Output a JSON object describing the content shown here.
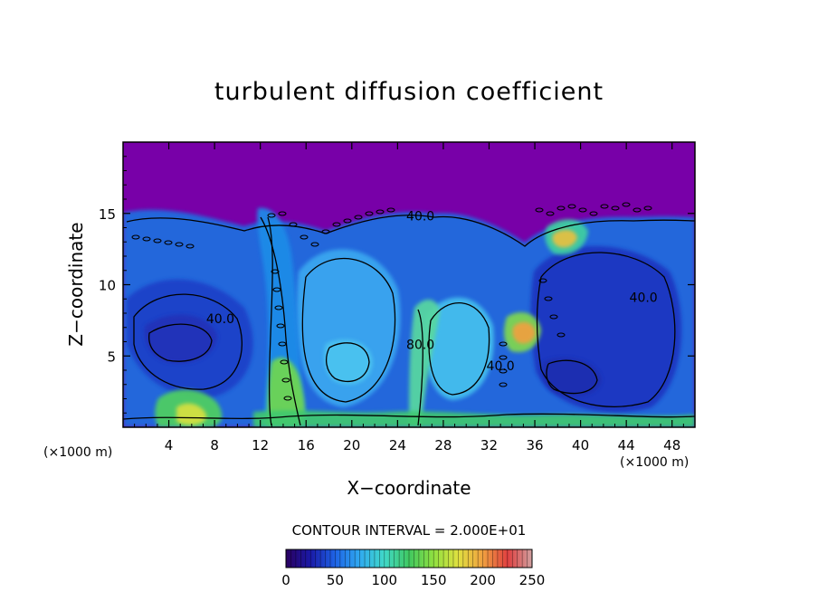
{
  "chart_data": {
    "type": "heatmap",
    "title": "turbulent diffusion coefficient",
    "xlabel": "X−coordinate",
    "ylabel": "Z−coordinate",
    "x_unit_left": "(×1000 m)",
    "x_unit_right": "(×1000 m)",
    "xlim": [
      0,
      50
    ],
    "ylim": [
      0,
      20
    ],
    "xticks": [
      4,
      8,
      12,
      16,
      20,
      24,
      28,
      32,
      36,
      40,
      44,
      48
    ],
    "yticks": [
      5,
      10,
      15
    ],
    "contour_interval": "CONTOUR INTERVAL = 2.000E+01",
    "contour_labels": [
      {
        "text": "40.0",
        "x": 26,
        "z": 14.5
      },
      {
        "text": "40.0",
        "x": 8.5,
        "z": 7.3
      },
      {
        "text": "40.0",
        "x": 45.5,
        "z": 8.8
      },
      {
        "text": "80.0",
        "x": 26,
        "z": 5.5
      },
      {
        "text": "40.0",
        "x": 33,
        "z": 4
      }
    ],
    "colorbar": {
      "min": 0,
      "max": 250,
      "ticks": [
        0,
        50,
        100,
        150,
        200,
        250
      ],
      "colors": [
        "#2a0060",
        "#1a1aa8",
        "#1e64e6",
        "#30aaf0",
        "#40d8c8",
        "#40c860",
        "#90e040",
        "#e0e040",
        "#f0a040",
        "#e04040",
        "#d0a0a0"
      ]
    },
    "background_color": "#7800a8"
  }
}
